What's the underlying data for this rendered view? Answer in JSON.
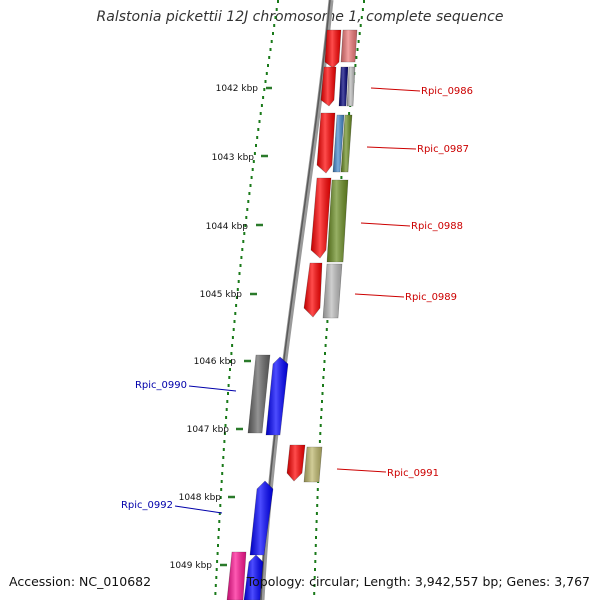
{
  "title": "Ralstonia pickettii 12J chromosome 1, complete sequence",
  "ticks": [
    "1042 kbp",
    "1043 kbp",
    "1044 kbp",
    "1045 kbp",
    "1046 kbp",
    "1047 kbp",
    "1048 kbp",
    "1049 kbp"
  ],
  "forward_labels": [
    "Rpic_0986",
    "Rpic_0987",
    "Rpic_0988",
    "Rpic_0989",
    "Rpic_0991"
  ],
  "reverse_labels": [
    "Rpic_0990",
    "Rpic_0992"
  ],
  "colors": {
    "forward_label": "#cc0000",
    "reverse_label": "#0000aa",
    "backbone": "#8a8a8a",
    "dots": "#1a7a1a",
    "red": "#ff0000",
    "pink": "#ee7777",
    "navy": "#00007a",
    "gray": "#bbbbbb",
    "steel": "#4488cc",
    "olive": "#6b8e23",
    "khaki": "#bdb76b",
    "darkgray": "#666666",
    "blue": "#0000ff",
    "magenta": "#ff1493"
  },
  "footer": {
    "accession": "Accession: NC_010682",
    "stats": "Topology: circular; Length: 3,942,557 bp; Genes: 3,767"
  }
}
